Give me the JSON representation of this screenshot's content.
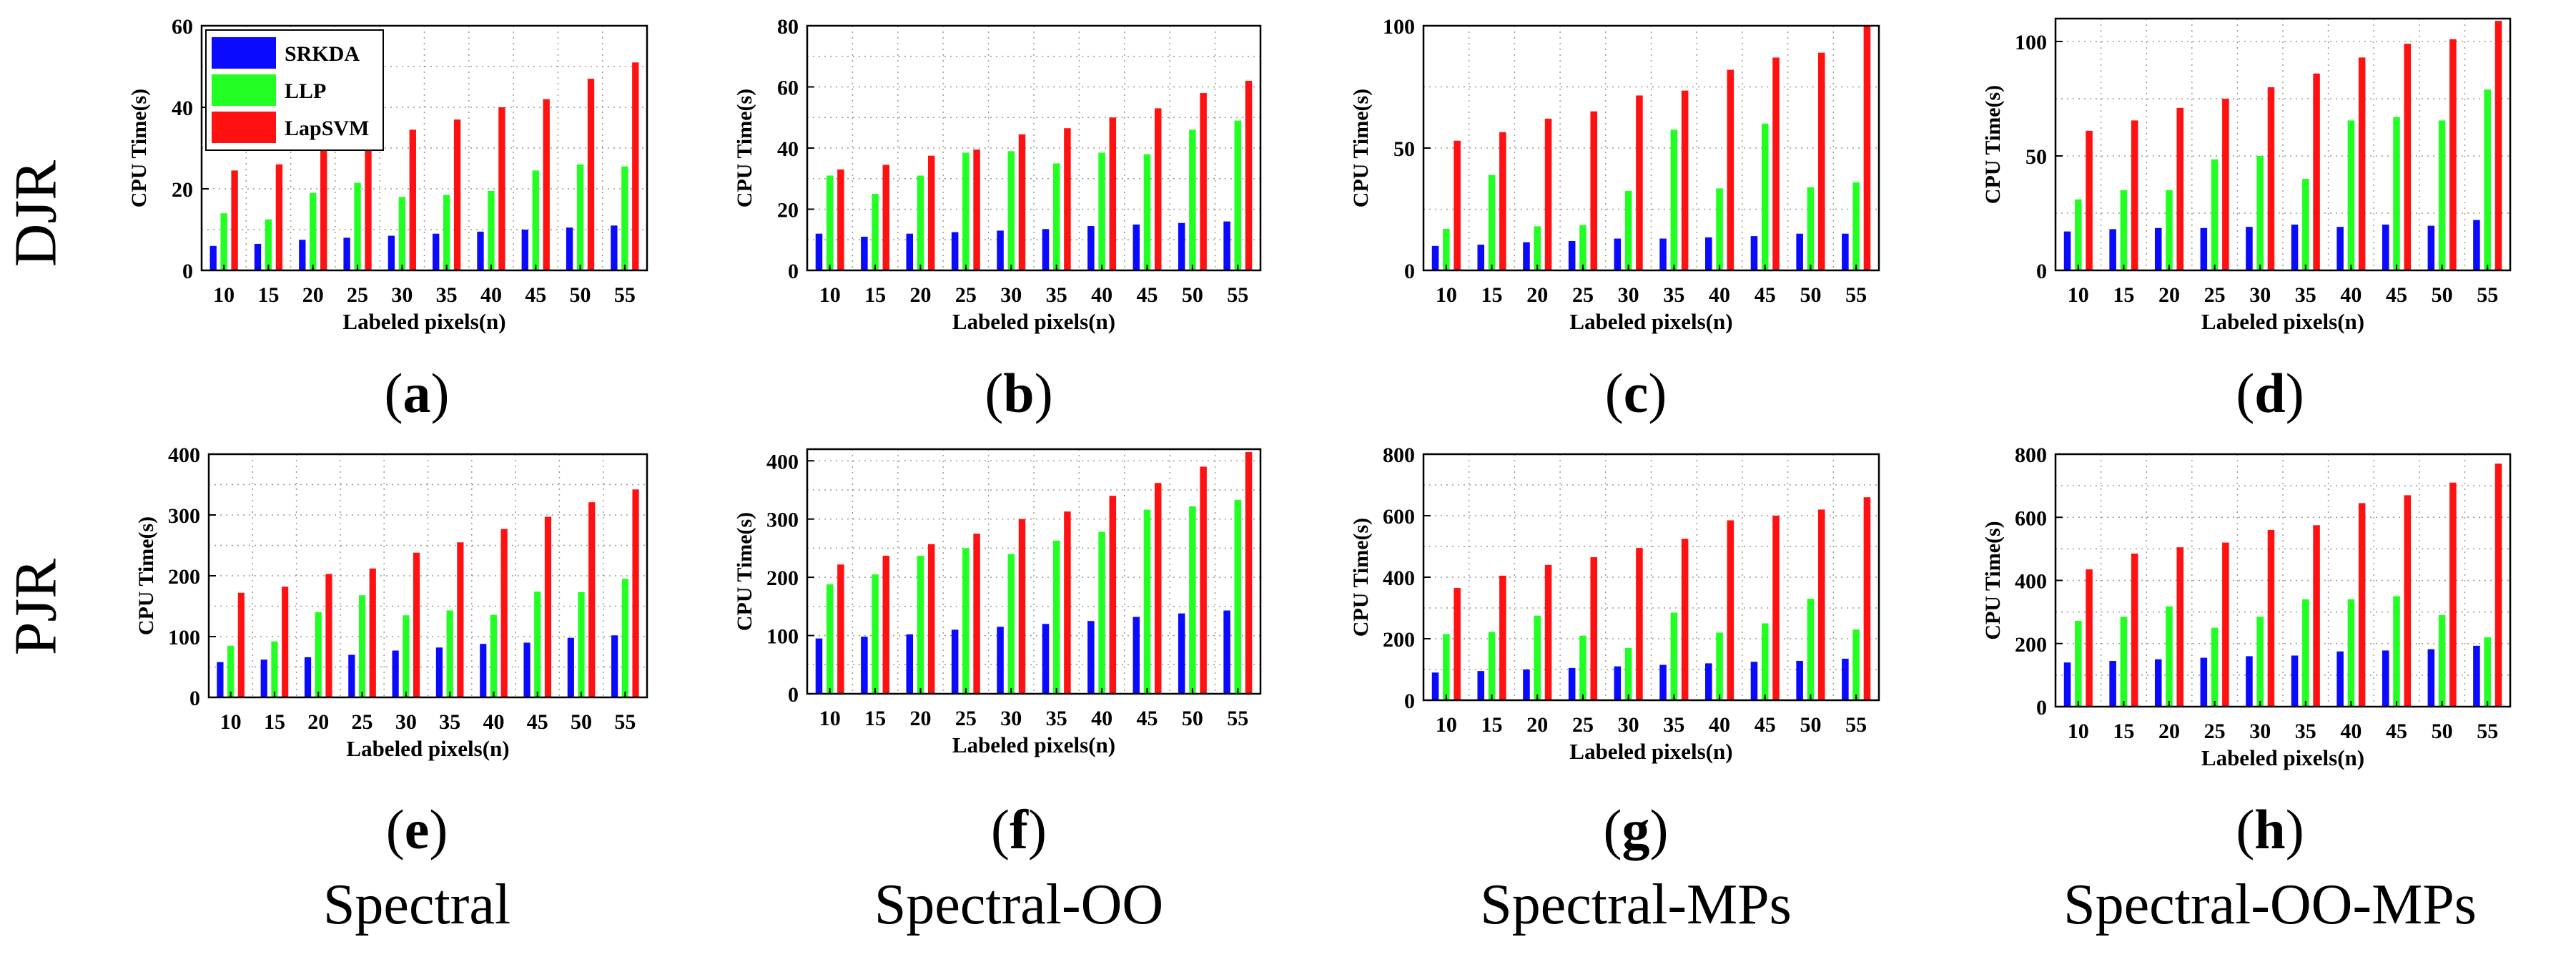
{
  "row_labels": [
    "DJR",
    "PJR"
  ],
  "panel_labels": [
    "a",
    "b",
    "c",
    "d",
    "e",
    "f",
    "g",
    "h"
  ],
  "column_captions": [
    "Spectral",
    "Spectral-OO",
    "Spectral-MPs",
    "Spectral-OO-MPs"
  ],
  "legend": [
    "SRKDA",
    "LLP",
    "LapSVM"
  ],
  "colors": {
    "SRKDA": "#0a0aff",
    "LLP": "#22ff22",
    "LapSVM": "#ff1111",
    "grid": "#999999"
  },
  "chart_data": [
    {
      "type": "bar",
      "panel": "a",
      "ylabel": "CPU Time(s)",
      "xlabel": "Labeled pixels(n)",
      "categories": [
        "10",
        "15",
        "20",
        "25",
        "30",
        "35",
        "40",
        "45",
        "50",
        "55"
      ],
      "ylim": [
        0,
        60
      ],
      "yticks": [
        0,
        20,
        40,
        60
      ],
      "series": [
        {
          "name": "SRKDA",
          "values": [
            6,
            6.5,
            7.5,
            8,
            8.5,
            9,
            9.5,
            10,
            10.5,
            11
          ]
        },
        {
          "name": "LLP",
          "values": [
            14,
            12.5,
            19,
            21.5,
            18,
            18.5,
            19.5,
            24.5,
            26,
            25.5
          ]
        },
        {
          "name": "LapSVM",
          "values": [
            24.5,
            26,
            29.5,
            31.5,
            34.5,
            37,
            40,
            42,
            47,
            51
          ]
        }
      ]
    },
    {
      "type": "bar",
      "panel": "b",
      "ylabel": "CPU Time(s)",
      "xlabel": "Labeled pixels(n)",
      "categories": [
        "10",
        "15",
        "20",
        "25",
        "30",
        "35",
        "40",
        "45",
        "50",
        "55"
      ],
      "ylim": [
        0,
        80
      ],
      "yticks": [
        0,
        20,
        40,
        60,
        80
      ],
      "series": [
        {
          "name": "SRKDA",
          "values": [
            12,
            11,
            12,
            12.5,
            13,
            13.5,
            14.5,
            15,
            15.5,
            16
          ]
        },
        {
          "name": "LLP",
          "values": [
            31,
            25,
            31,
            38.5,
            39,
            35,
            38.5,
            38,
            46,
            49
          ]
        },
        {
          "name": "LapSVM",
          "values": [
            33,
            34.5,
            37.5,
            39.5,
            44.5,
            46.5,
            50,
            53,
            58,
            62
          ]
        }
      ]
    },
    {
      "type": "bar",
      "panel": "c",
      "ylabel": "CPU Time(s)",
      "xlabel": "Labeled pixels(n)",
      "categories": [
        "10",
        "15",
        "20",
        "25",
        "30",
        "35",
        "40",
        "45",
        "50",
        "55"
      ],
      "ylim": [
        0,
        100
      ],
      "yticks": [
        0,
        50,
        100
      ],
      "series": [
        {
          "name": "SRKDA",
          "values": [
            10,
            10.5,
            11.5,
            12,
            13,
            13,
            13.5,
            14,
            15,
            15
          ]
        },
        {
          "name": "LLP",
          "values": [
            17,
            39,
            18,
            18.5,
            32.5,
            57.5,
            33.5,
            60,
            34,
            36
          ]
        },
        {
          "name": "LapSVM",
          "values": [
            53,
            56.5,
            62,
            65,
            71.5,
            73.5,
            82,
            87,
            89,
            100
          ]
        }
      ]
    },
    {
      "type": "bar",
      "panel": "d",
      "ylabel": "CPU Time(s)",
      "xlabel": "Labeled pixels(n)",
      "categories": [
        "10",
        "15",
        "20",
        "25",
        "30",
        "35",
        "40",
        "45",
        "50",
        "55"
      ],
      "ylim": [
        0,
        110
      ],
      "yticks": [
        0,
        50,
        100
      ],
      "series": [
        {
          "name": "SRKDA",
          "values": [
            17,
            18,
            18.5,
            18.5,
            19,
            20,
            19,
            20,
            19.5,
            22
          ]
        },
        {
          "name": "LLP",
          "values": [
            31,
            35,
            35,
            48.5,
            50,
            40,
            65.5,
            67,
            65.5,
            79
          ]
        },
        {
          "name": "LapSVM",
          "values": [
            61,
            65.5,
            71,
            75,
            80,
            86,
            93,
            99,
            101,
            109
          ]
        }
      ]
    },
    {
      "type": "bar",
      "panel": "e",
      "ylabel": "CPU Time(s)",
      "xlabel": "Labeled pixels(n)",
      "categories": [
        "10",
        "15",
        "20",
        "25",
        "30",
        "35",
        "40",
        "45",
        "50",
        "55"
      ],
      "ylim": [
        0,
        400
      ],
      "yticks": [
        0,
        100,
        200,
        300,
        400
      ],
      "series": [
        {
          "name": "SRKDA",
          "values": [
            58,
            62,
            66,
            70,
            77,
            82,
            88,
            90,
            98,
            102
          ]
        },
        {
          "name": "LLP",
          "values": [
            85,
            92,
            140,
            168,
            135,
            143,
            136,
            174,
            173,
            195
          ]
        },
        {
          "name": "LapSVM",
          "values": [
            172,
            182,
            203,
            212,
            238,
            255,
            277,
            297,
            321,
            342
          ]
        }
      ]
    },
    {
      "type": "bar",
      "panel": "f",
      "ylabel": "CPU Time(s)",
      "xlabel": "Labeled pixels(n)",
      "categories": [
        "10",
        "15",
        "20",
        "25",
        "30",
        "35",
        "40",
        "45",
        "50",
        "55"
      ],
      "ylim": [
        0,
        420
      ],
      "yticks": [
        0,
        100,
        200,
        300,
        400
      ],
      "series": [
        {
          "name": "SRKDA",
          "values": [
            95,
            98,
            102,
            110,
            115,
            120,
            125,
            132,
            138,
            143
          ]
        },
        {
          "name": "LLP",
          "values": [
            188,
            205,
            237,
            250,
            240,
            263,
            278,
            316,
            322,
            333
          ]
        },
        {
          "name": "LapSVM",
          "values": [
            222,
            237,
            257,
            275,
            300,
            313,
            340,
            362,
            390,
            415
          ]
        }
      ]
    },
    {
      "type": "bar",
      "panel": "g",
      "ylabel": "CPU Time(s)",
      "xlabel": "Labeled pixels(n)",
      "categories": [
        "10",
        "15",
        "20",
        "25",
        "30",
        "35",
        "40",
        "45",
        "50",
        "55"
      ],
      "ylim": [
        0,
        800
      ],
      "yticks": [
        0,
        200,
        400,
        600,
        800
      ],
      "series": [
        {
          "name": "SRKDA",
          "values": [
            90,
            95,
            100,
            105,
            110,
            115,
            120,
            125,
            128,
            135
          ]
        },
        {
          "name": "LLP",
          "values": [
            215,
            222,
            275,
            210,
            170,
            285,
            220,
            250,
            330,
            230
          ]
        },
        {
          "name": "LapSVM",
          "values": [
            365,
            405,
            440,
            465,
            495,
            525,
            585,
            600,
            620,
            660
          ]
        }
      ]
    },
    {
      "type": "bar",
      "panel": "h",
      "ylabel": "CPU Time(s)",
      "xlabel": "Labeled pixels(n)",
      "categories": [
        "10",
        "15",
        "20",
        "25",
        "30",
        "35",
        "40",
        "45",
        "50",
        "55"
      ],
      "ylim": [
        0,
        800
      ],
      "yticks": [
        0,
        200,
        400,
        600,
        800
      ],
      "series": [
        {
          "name": "SRKDA",
          "values": [
            140,
            145,
            150,
            155,
            160,
            162,
            175,
            178,
            182,
            193
          ]
        },
        {
          "name": "LLP",
          "values": [
            272,
            285,
            318,
            250,
            285,
            340,
            340,
            350,
            290,
            220
          ]
        },
        {
          "name": "LapSVM",
          "values": [
            435,
            485,
            505,
            520,
            560,
            575,
            645,
            670,
            710,
            770
          ]
        }
      ]
    }
  ]
}
